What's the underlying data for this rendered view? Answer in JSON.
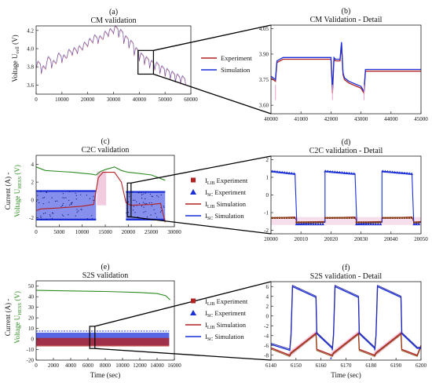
{
  "colors": {
    "experiment": "#b22222",
    "simulation": "#1a2fd6",
    "sc_fill": "#2233dd",
    "green": "#2e8b22",
    "pink": "#e8a0c8",
    "axis": "#222222"
  },
  "chart_data": [
    {
      "id": "a",
      "type": "line",
      "panel_label": "(a)",
      "title": "CM validation",
      "xlabel": "",
      "ylabel_main": "Voltage U",
      "ylabel_sub": "cell",
      "ylabel_unit": " (V)",
      "xlim": [
        0,
        60000
      ],
      "ylim": [
        3.5,
        4.25
      ],
      "xticks": [
        0,
        10000,
        20000,
        30000,
        40000,
        50000,
        60000
      ],
      "yticks": [
        3.6,
        3.8,
        4.0,
        4.2
      ],
      "ytick_labels": [
        "3.6",
        "3.8",
        "4.0",
        "4.2"
      ],
      "zoom_box": {
        "x": [
          39500,
          45500
        ],
        "y": [
          3.72,
          3.98
        ]
      },
      "series": [
        {
          "name": "Experiment",
          "color_key": "experiment",
          "x": [
            0,
            2000,
            4000,
            6000,
            8000,
            10000,
            12000,
            14000,
            16000,
            18000,
            20000,
            22000,
            24000,
            26000,
            28000,
            30000,
            32000,
            34000,
            36000,
            38000,
            40000,
            42000,
            44000,
            46000,
            48000,
            50000,
            52000,
            54000,
            56000,
            58000
          ],
          "values": [
            3.77,
            3.72,
            3.82,
            3.78,
            3.86,
            3.84,
            3.9,
            3.92,
            3.94,
            3.98,
            4.02,
            4.06,
            4.05,
            4.1,
            4.13,
            4.16,
            4.12,
            4.05,
            4.0,
            3.92,
            3.86,
            3.82,
            3.78,
            3.76,
            3.72,
            3.69,
            3.66,
            3.63,
            3.61,
            3.6
          ]
        },
        {
          "name": "Simulation",
          "color_key": "simulation",
          "x": [
            0,
            2000,
            4000,
            6000,
            8000,
            10000,
            12000,
            14000,
            16000,
            18000,
            20000,
            22000,
            24000,
            26000,
            28000,
            30000,
            32000,
            34000,
            36000,
            38000,
            40000,
            42000,
            44000,
            46000,
            48000,
            50000,
            52000,
            54000,
            56000,
            58000
          ],
          "values": [
            3.78,
            3.73,
            3.83,
            3.79,
            3.87,
            3.85,
            3.91,
            3.93,
            3.95,
            3.99,
            4.03,
            4.07,
            4.06,
            4.11,
            4.14,
            4.17,
            4.13,
            4.06,
            4.01,
            3.93,
            3.87,
            3.83,
            3.79,
            3.77,
            3.73,
            3.7,
            3.67,
            3.64,
            3.62,
            3.61
          ]
        }
      ],
      "legend": [
        {
          "label": "Experiment",
          "color_key": "experiment"
        },
        {
          "label": "Simulation",
          "color_key": "simulation"
        }
      ]
    },
    {
      "id": "b",
      "type": "line",
      "panel_label": "(b)",
      "title": "CM Validation - Detail",
      "xlim": [
        40000,
        45000
      ],
      "ylim": [
        3.55,
        4.07
      ],
      "xticks": [
        40000,
        41000,
        42000,
        43000,
        44000,
        45000
      ],
      "yticks": [
        3.6,
        3.75,
        3.9,
        4.05
      ],
      "ytick_labels": [
        "3.60",
        "3.75",
        "3.90",
        "4.05"
      ],
      "series": [
        {
          "name": "Experiment",
          "color_key": "experiment",
          "x": [
            40000,
            40150,
            40200,
            40400,
            41000,
            42000,
            42050,
            42100,
            42150,
            42300,
            42350,
            42400,
            42450,
            42600,
            43000,
            43100,
            43150,
            43300,
            44000,
            45000
          ],
          "values": [
            3.76,
            3.74,
            3.85,
            3.87,
            3.87,
            3.87,
            3.67,
            3.87,
            3.86,
            3.86,
            3.96,
            3.78,
            3.75,
            3.73,
            3.7,
            3.67,
            3.8,
            3.8,
            3.8,
            3.8
          ]
        },
        {
          "name": "Simulation",
          "color_key": "simulation",
          "x": [
            40000,
            40150,
            40200,
            40400,
            41000,
            42000,
            42050,
            42100,
            42150,
            42300,
            42350,
            42400,
            42450,
            42600,
            43000,
            43100,
            43150,
            43300,
            44000,
            45000
          ],
          "values": [
            3.77,
            3.75,
            3.86,
            3.88,
            3.88,
            3.88,
            3.69,
            3.88,
            3.87,
            3.87,
            3.97,
            3.79,
            3.76,
            3.74,
            3.71,
            3.68,
            3.81,
            3.81,
            3.81,
            3.81
          ]
        }
      ]
    },
    {
      "id": "c",
      "type": "line",
      "panel_label": "(c)",
      "title": "C2C validation",
      "ylabel_line1": "Current (A) -",
      "ylabel_line2_main": "Voltage U",
      "ylabel_line2_sub": "HESS",
      "ylabel_line2_unit": " (V)",
      "xlim": [
        0,
        30000
      ],
      "ylim": [
        -3,
        5
      ],
      "xticks": [
        0,
        5000,
        10000,
        15000,
        20000,
        25000,
        30000
      ],
      "yticks": [
        -2,
        0,
        2,
        4
      ],
      "zoom_box": {
        "x": [
          19800,
          20600
        ],
        "y": [
          -1.9,
          1.9
        ]
      },
      "series": [
        {
          "name": "U_HESS",
          "color_key": "green",
          "x": [
            0,
            2000,
            5000,
            8000,
            10000,
            12000,
            13000,
            14000,
            15000,
            17000,
            18500,
            20000,
            22000,
            25000,
            28000
          ],
          "values": [
            3.7,
            3.3,
            3.2,
            3.1,
            3.0,
            2.9,
            2.8,
            3.2,
            3.4,
            3.7,
            3.3,
            3.1,
            3.0,
            2.8,
            2.2
          ]
        },
        {
          "name": "I_LIB",
          "color_key": "experiment",
          "x": [
            0,
            1000,
            5000,
            10000,
            12500,
            13500,
            14500,
            17000,
            18500,
            19500,
            20500,
            25000,
            27000,
            28000
          ],
          "values": [
            -1.2,
            -1.0,
            -0.9,
            -0.7,
            -0.5,
            2.5,
            3.1,
            3.1,
            2.0,
            -0.3,
            -0.6,
            -0.5,
            -0.4,
            -2.5
          ]
        }
      ],
      "sc_bands": [
        {
          "x": [
            0,
            13000
          ],
          "y": [
            -2.2,
            1.0
          ]
        },
        {
          "x": [
            19500,
            28000
          ],
          "y": [
            -2.2,
            0.9
          ]
        }
      ]
    },
    {
      "id": "d",
      "type": "line",
      "panel_label": "(d)",
      "title": "C2C validation - Detail",
      "xlim": [
        20000,
        20050
      ],
      "ylim": [
        -2.2,
        2.2
      ],
      "xticks": [
        20000,
        20010,
        20020,
        20030,
        20040,
        20050
      ],
      "yticks": [
        -2,
        -1,
        0,
        1,
        2
      ],
      "i_lib": {
        "high": -1.3,
        "low": -1.55
      },
      "i_sc": {
        "high": 1.35,
        "low": -1.65
      },
      "periods": [
        [
          20000,
          20008,
          20018
        ],
        [
          20018,
          20028,
          20037
        ],
        [
          20037,
          20047,
          20050
        ]
      ],
      "legend": [
        {
          "label": "I",
          "sub": "LIB",
          "rest": " Experiment",
          "marker": "square",
          "color_key": "experiment"
        },
        {
          "label": "I",
          "sub": "SC",
          "rest": " Experiment",
          "marker": "triangle",
          "color_key": "simulation"
        },
        {
          "label": "I",
          "sub": "LIB",
          "rest": " Simulation",
          "marker": "line",
          "color_key": "experiment"
        },
        {
          "label": "I",
          "sub": "SC",
          "rest": " Simulation",
          "marker": "line",
          "color_key": "simulation"
        }
      ]
    },
    {
      "id": "e",
      "type": "line",
      "panel_label": "(e)",
      "title": "S2S validation",
      "xlabel": "Time (sec)",
      "ylabel_line1": "Current (A) -",
      "ylabel_line2_main": "Voltage U",
      "ylabel_line2_sub": "HESS",
      "ylabel_line2_unit": " (V)",
      "xlim": [
        0,
        16000
      ],
      "ylim": [
        -20,
        55
      ],
      "xticks": [
        0,
        2000,
        4000,
        6000,
        8000,
        10000,
        12000,
        14000,
        16000
      ],
      "yticks": [
        -20,
        -10,
        0,
        10,
        20,
        30,
        40,
        50
      ],
      "zoom_box": {
        "x": [
          6200,
          6800
        ],
        "y": [
          -9,
          12
        ]
      },
      "series": [
        {
          "name": "U_HESS",
          "color_key": "green",
          "x": [
            0,
            4000,
            8000,
            12000,
            14000,
            15000,
            15500
          ],
          "values": [
            46,
            45.5,
            45,
            44,
            43,
            41,
            37
          ]
        }
      ],
      "sc_band": {
        "x": [
          0,
          15400
        ],
        "y": [
          -6,
          6
        ]
      },
      "lib_band": {
        "x": [
          0,
          15400
        ],
        "y": [
          -7,
          1
        ]
      }
    },
    {
      "id": "f",
      "type": "line",
      "panel_label": "(f)",
      "title": "S2S validation - Detail",
      "xlabel": "Time (sec)",
      "xlim": [
        6140,
        6200
      ],
      "ylim": [
        -9,
        7
      ],
      "xticks": [
        6140,
        6150,
        6160,
        6170,
        6180,
        6190,
        6200
      ],
      "yticks": [
        -8,
        -6,
        -4,
        -2,
        0,
        2,
        4,
        6
      ],
      "cycles": [
        6148,
        6165,
        6182
      ],
      "legend": [
        {
          "label": "I",
          "sub": "LIB",
          "rest": " Experiment",
          "marker": "square",
          "color_key": "experiment"
        },
        {
          "label": "I",
          "sub": "SC",
          "rest": " Experiment",
          "marker": "triangle",
          "color_key": "simulation"
        },
        {
          "label": "I",
          "sub": "LIB",
          "rest": " Simulation",
          "marker": "line",
          "color_key": "experiment"
        },
        {
          "label": "I",
          "sub": "SC",
          "rest": " Simulation",
          "marker": "line",
          "color_key": "simulation"
        }
      ]
    }
  ]
}
